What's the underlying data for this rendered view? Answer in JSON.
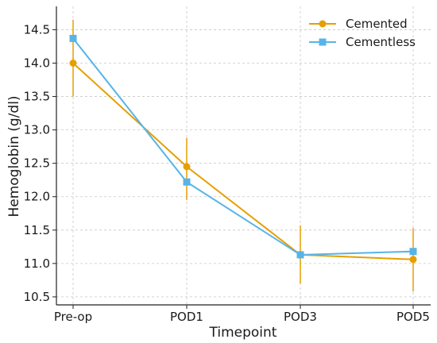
{
  "chart_data": {
    "type": "line",
    "title": "",
    "xlabel": "Timepoint",
    "ylabel": "Hemoglobin (g/dl)",
    "categories": [
      "Pre-op",
      "POD1",
      "POD3",
      "POD5"
    ],
    "yticks": [
      "10.5",
      "11.0",
      "11.5",
      "12.0",
      "12.5",
      "13.0",
      "13.5",
      "14.0",
      "14.5"
    ],
    "ylim": [
      10.38,
      14.85
    ],
    "grid": true,
    "legend_position": "top-right",
    "series": [
      {
        "name": "Cemented",
        "color": "#E69F00",
        "marker": "circle",
        "values": [
          14.0,
          12.45,
          11.13,
          11.06
        ],
        "error": [
          [
            13.5,
            14.65
          ],
          [
            11.95,
            12.88
          ],
          [
            10.7,
            11.57
          ],
          [
            10.58,
            11.53
          ]
        ]
      },
      {
        "name": "Cementless",
        "color": "#56B4E9",
        "marker": "square",
        "values": [
          14.37,
          12.22,
          11.13,
          11.18
        ],
        "error": null
      }
    ]
  }
}
